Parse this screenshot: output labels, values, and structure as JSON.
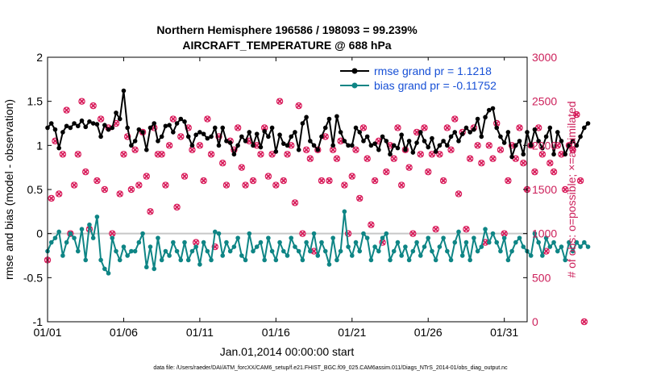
{
  "colors": {
    "rmse": "#000000",
    "bias": "#0e8585",
    "obs": "#d81b5a",
    "zero_line": "#c8c8c8",
    "legend_text": "#1750d6",
    "right_axis": "#cc1f5a"
  },
  "footer": "data file: /Users/raeder/DAI/ATM_forcXX/CAM6_setup/f.e21.FHIST_BGC.f09_025.CAM6assim.011/Diags_NTrS_2014-01/obs_diag_output.nc",
  "chart_data": {
    "type": "line",
    "title": "Northern Hemisphere 196586 / 198093 = 99.239%",
    "subtitle": "AIRCRAFT_TEMPERATURE @ 688 hPa",
    "xlabel": "Jan.01,2014 00:00:00 start",
    "ylabel": "rmse and bias (model - observation)",
    "ylabel_right": "# of obs: o=possible; ×=assimilated",
    "xlim": [
      1,
      32.5
    ],
    "ylim": [
      -1,
      2
    ],
    "ylim_right": [
      0,
      3000
    ],
    "xticks": [
      1,
      6,
      11,
      16,
      21,
      26,
      31
    ],
    "xtick_labels": [
      "01/01",
      "01/06",
      "01/11",
      "01/16",
      "01/21",
      "01/26",
      "01/31"
    ],
    "yticks": [
      -1,
      -0.5,
      0,
      0.5,
      1,
      1.5,
      2
    ],
    "ytick_labels": [
      "-1",
      "-0.5",
      "0",
      "0.5",
      "1",
      "1.5",
      "2"
    ],
    "yticks_right": [
      0,
      500,
      1000,
      1500,
      2000,
      2500,
      3000
    ],
    "ytick_labels_right": [
      "0",
      "500",
      "1000",
      "1500",
      "2000",
      "2500",
      "3000"
    ],
    "legend": [
      "rmse grand pr = 1.1218",
      "bias grand pr = -0.11752"
    ],
    "legend_position": "top-right",
    "series": [
      {
        "name": "rmse grand pr = 1.1218",
        "x0": 1,
        "dx": 0.25,
        "values": [
          1.2,
          1.25,
          1.18,
          0.97,
          1.15,
          1.22,
          1.2,
          1.25,
          1.22,
          1.28,
          1.21,
          1.27,
          1.25,
          1.24,
          1.1,
          1.23,
          1.18,
          1.2,
          1.37,
          1.3,
          1.62,
          1.2,
          1.0,
          1.05,
          1.18,
          1.15,
          0.95,
          1.2,
          1.25,
          1.05,
          1.1,
          1.22,
          1.23,
          1.15,
          1.25,
          1.3,
          1.27,
          1.1,
          1.0,
          1.12,
          1.15,
          1.13,
          1.08,
          1.1,
          1.2,
          1.0,
          1.2,
          1.05,
          1.03,
          0.9,
          1.0,
          1.1,
          1.05,
          1.15,
          1.0,
          1.13,
          0.98,
          1.16,
          1.1,
          1.2,
          0.93,
          1.12,
          1.02,
          1.0,
          1.1,
          1.15,
          0.95,
          1.25,
          1.32,
          1.05,
          1.0,
          0.95,
          1.1,
          1.2,
          1.3,
          1.0,
          1.33,
          1.15,
          1.05,
          1.0,
          1.0,
          1.2,
          1.15,
          1.05,
          1.1,
          1.0,
          1.02,
          0.95,
          1.1,
          1.05,
          0.9,
          1.0,
          0.97,
          1.12,
          0.95,
          1.05,
          0.92,
          1.03,
          1.15,
          1.05,
          0.98,
          1.08,
          0.93,
          1.0,
          1.05,
          1.0,
          1.1,
          1.15,
          1.05,
          1.13,
          1.2,
          1.15,
          1.18,
          1.3,
          1.1,
          1.32,
          1.4,
          1.42,
          1.2,
          1.1,
          1.03,
          1.15,
          0.87,
          1.0,
          1.05,
          0.9,
          1.15,
          1.0,
          1.18,
          1.05,
          0.97,
          1.1,
          1.2,
          0.9,
          1.15,
          1.05,
          0.9,
          1.0,
          1.05,
          1.0,
          1.1,
          1.2,
          1.25
        ]
      },
      {
        "name": "bias grand pr = -0.11752",
        "x0": 1,
        "dx": 0.25,
        "values": [
          -0.2,
          -0.1,
          -0.05,
          0.02,
          -0.25,
          -0.1,
          0.0,
          -0.05,
          -0.2,
          0.05,
          -0.3,
          0.1,
          -0.05,
          0.19,
          -0.3,
          -0.4,
          -0.45,
          -0.05,
          -0.2,
          -0.3,
          -0.15,
          -0.25,
          -0.2,
          -0.2,
          -0.1,
          0.0,
          -0.38,
          -0.15,
          -0.4,
          -0.05,
          -0.3,
          -0.2,
          -0.25,
          -0.1,
          -0.2,
          -0.3,
          -0.1,
          -0.3,
          -0.2,
          -0.15,
          -0.35,
          -0.1,
          -0.2,
          -0.3,
          0.02,
          0.0,
          -0.25,
          -0.1,
          -0.2,
          -0.15,
          -0.05,
          -0.25,
          -0.3,
          0.0,
          -0.2,
          -0.15,
          -0.1,
          -0.3,
          -0.05,
          -0.2,
          -0.3,
          -0.1,
          -0.2,
          -0.25,
          -0.05,
          -0.15,
          -0.2,
          -0.3,
          -0.1,
          -0.2,
          0.0,
          -0.25,
          -0.1,
          -0.2,
          -0.35,
          -0.05,
          -0.3,
          -0.2,
          0.25,
          -0.15,
          -0.25,
          -0.1,
          -0.2,
          0.0,
          -0.05,
          -0.3,
          -0.15,
          -0.2,
          -0.05,
          0.0,
          -0.3,
          -0.2,
          -0.1,
          -0.25,
          -0.15,
          -0.3,
          -0.2,
          -0.1,
          -0.25,
          -0.15,
          -0.05,
          -0.2,
          -0.3,
          -0.15,
          -0.05,
          -0.2,
          -0.3,
          -0.1,
          0.02,
          -0.25,
          -0.1,
          -0.3,
          -0.05,
          -0.2,
          -0.15,
          0.05,
          -0.1,
          0.0,
          -0.1,
          -0.2,
          -0.05,
          -0.3,
          -0.2,
          -0.1,
          -0.05,
          -0.15,
          -0.2,
          -0.25,
          0.0,
          -0.1,
          -0.25,
          -0.05,
          -0.15,
          -0.1,
          -0.2,
          -0.15,
          -0.3,
          -0.1,
          -0.2,
          -0.1,
          -0.15,
          -0.1,
          -0.15
        ]
      }
    ],
    "obs_counts": {
      "name": "# of obs",
      "x0": 1,
      "dx": 0.25,
      "values": [
        700,
        1400,
        2050,
        1450,
        1900,
        2400,
        1000,
        1550,
        1900,
        2500,
        1700,
        1050,
        2450,
        1600,
        2300,
        1500,
        2200,
        1000,
        2250,
        1450,
        1900,
        2100,
        1500,
        1950,
        1550,
        2150,
        1650,
        1250,
        2200,
        1900,
        1900,
        1550,
        2000,
        2300,
        1300,
        2100,
        1650,
        2200,
        1950,
        900,
        2000,
        1600,
        2300,
        1900,
        850,
        2100,
        1800,
        1550,
        2050,
        1950,
        2200,
        1750,
        1550,
        2050,
        1600,
        2000,
        1900,
        2200,
        1650,
        1900,
        1550,
        2500,
        1600,
        1900,
        2000,
        1350,
        2450,
        1000,
        1950,
        1850,
        800,
        1950,
        1600,
        2100,
        1600,
        1950,
        1850,
        2050,
        1550,
        1000,
        1650,
        1950,
        1400,
        2200,
        1850,
        1100,
        1600,
        2050,
        900,
        1700,
        2000,
        1850,
        2200,
        1550,
        1950,
        1750,
        1000,
        2150,
        1900,
        2200,
        1700,
        1900,
        1050,
        1900,
        1600,
        2200,
        1950,
        2300,
        1450,
        2150,
        1050,
        1850,
        2200,
        2000,
        1800,
        900,
        2000,
        1850,
        2250,
        1950,
        1000,
        1600,
        2000,
        1850,
        2200,
        1800,
        1500,
        2000,
        1700,
        2200,
        1900,
        800,
        1800,
        1700,
        2000,
        1900,
        1500,
        2000,
        1950,
        2350,
        1600,
        0
      ]
    }
  }
}
